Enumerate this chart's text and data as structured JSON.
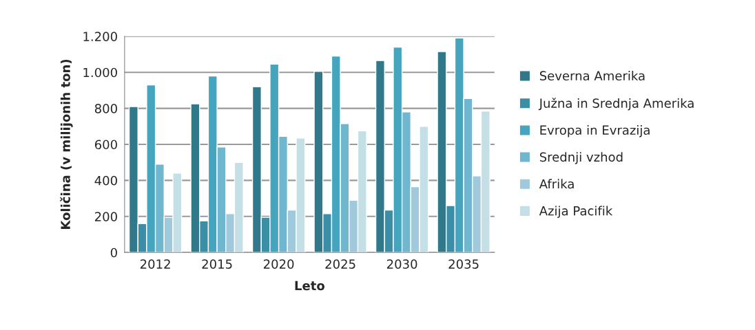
{
  "chart_data": {
    "type": "bar",
    "xlabel": "Leto",
    "ylabel": "Količina (v milijonih ton)",
    "categories": [
      "2012",
      "2015",
      "2020",
      "2025",
      "2030",
      "2035"
    ],
    "series": [
      {
        "name": "Severna Amerika",
        "color": "#31788a",
        "values": [
          810,
          825,
          920,
          1005,
          1065,
          1115
        ]
      },
      {
        "name": "Južna in Srednja Amerika",
        "color": "#3a8ea6",
        "values": [
          160,
          175,
          195,
          215,
          235,
          260
        ]
      },
      {
        "name": "Evropa in Evrazija",
        "color": "#46a5be",
        "values": [
          930,
          980,
          1045,
          1090,
          1140,
          1190
        ]
      },
      {
        "name": "Srednji vzhod",
        "color": "#6fb7cf",
        "values": [
          490,
          585,
          645,
          715,
          780,
          855
        ]
      },
      {
        "name": "Afrika",
        "color": "#a0cadb",
        "values": [
          195,
          215,
          235,
          290,
          365,
          425
        ]
      },
      {
        "name": "Azija Pacifik",
        "color": "#c5dfe7",
        "values": [
          440,
          500,
          635,
          675,
          700,
          785
        ]
      }
    ],
    "ylim": [
      0,
      1200
    ],
    "yticks": [
      0,
      200,
      400,
      600,
      800,
      {
        "value": 1000,
        "label": "1.000"
      },
      {
        "value": 1200,
        "label": "1.200"
      }
    ],
    "grid": "y",
    "legend": "right"
  }
}
